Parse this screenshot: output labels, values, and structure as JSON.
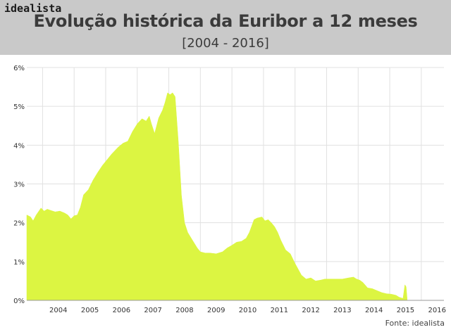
{
  "header": {
    "logo": "idealista",
    "title": "Evolução histórica da Euribor a 12 meses",
    "subtitle": "[2004 - 2016]"
  },
  "source": "Fonte: idealista",
  "colors": {
    "fill": "#dcf542",
    "header_bg": "#c9c9c9",
    "grid": "#e1e1e1"
  },
  "chart_data": {
    "type": "area",
    "title": "Evolução histórica da Euribor a 12 meses",
    "subtitle": "[2004 - 2016]",
    "xlabel": "",
    "ylabel": "",
    "ylim": [
      0,
      6
    ],
    "yticks": [
      "0%",
      "1%",
      "2%",
      "3%",
      "4%",
      "5%",
      "6%"
    ],
    "xticks": [
      "2004",
      "2005",
      "2006",
      "2007",
      "2008",
      "2009",
      "2010",
      "2011",
      "2012",
      "2013",
      "2014",
      "2015",
      "2016"
    ],
    "grid": true,
    "series": [
      {
        "x": [
          2003.5,
          2003.62,
          2003.7,
          2003.8,
          2003.95,
          2004.05,
          2004.15,
          2004.25,
          2004.4,
          2004.55,
          2004.7,
          2004.8,
          2004.9,
          2005.0,
          2005.1,
          2005.2,
          2005.3,
          2005.45,
          2005.6,
          2005.75,
          2005.9,
          2006.0,
          2006.2,
          2006.4,
          2006.55,
          2006.7,
          2006.85,
          2007.0,
          2007.15,
          2007.28,
          2007.38,
          2007.45,
          2007.55,
          2007.68,
          2007.8,
          2007.88,
          2007.96,
          2008.04,
          2008.12,
          2008.2,
          2008.3,
          2008.4,
          2008.5,
          2008.6,
          2008.75,
          2008.9,
          2009.0,
          2009.15,
          2009.3,
          2009.5,
          2009.7,
          2009.85,
          2010.0,
          2010.15,
          2010.3,
          2010.45,
          2010.55,
          2010.7,
          2010.8,
          2010.95,
          2011.05,
          2011.15,
          2011.25,
          2011.35,
          2011.45,
          2011.55,
          2011.7,
          2011.85,
          2012.0,
          2012.2,
          2012.35,
          2012.5,
          2012.65,
          2012.8,
          2012.95,
          2013.1,
          2013.3,
          2013.5,
          2013.7,
          2013.85,
          2013.95,
          2014.05,
          2014.15,
          2014.3,
          2014.45,
          2014.6,
          2014.75,
          2014.9,
          2015.05,
          2015.2,
          2015.3,
          2015.42,
          2015.48,
          2015.52,
          2015.55
        ],
        "values": [
          2.2,
          2.15,
          2.05,
          2.2,
          2.38,
          2.3,
          2.35,
          2.32,
          2.28,
          2.3,
          2.25,
          2.2,
          2.1,
          2.18,
          2.2,
          2.4,
          2.72,
          2.85,
          3.1,
          3.3,
          3.48,
          3.58,
          3.78,
          3.95,
          4.05,
          4.1,
          4.35,
          4.55,
          4.68,
          4.62,
          4.75,
          4.55,
          4.3,
          4.7,
          4.9,
          5.1,
          5.35,
          5.3,
          5.35,
          5.25,
          4.1,
          2.7,
          2.0,
          1.75,
          1.55,
          1.35,
          1.25,
          1.22,
          1.22,
          1.2,
          1.25,
          1.35,
          1.42,
          1.5,
          1.52,
          1.6,
          1.75,
          2.08,
          2.12,
          2.15,
          2.05,
          2.08,
          2.0,
          1.9,
          1.75,
          1.55,
          1.3,
          1.2,
          0.95,
          0.65,
          0.55,
          0.58,
          0.5,
          0.52,
          0.55,
          0.55,
          0.55,
          0.55,
          0.58,
          0.6,
          0.55,
          0.52,
          0.46,
          0.32,
          0.3,
          0.25,
          0.2,
          0.17,
          0.16,
          0.13,
          0.08,
          0.05,
          0.4,
          0.35,
          0.05
        ]
      }
    ]
  }
}
